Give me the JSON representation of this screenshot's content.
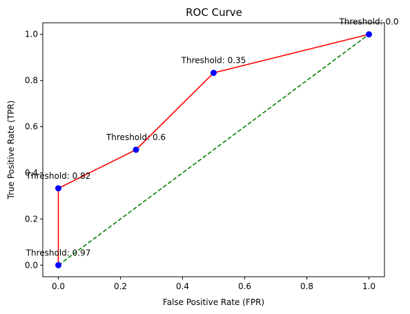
{
  "chart_data": {
    "type": "line",
    "title": "ROC Curve",
    "xlabel": "False Positive Rate (FPR)",
    "ylabel": "True Positive Rate (TPR)",
    "xlim": [
      -0.05,
      1.05
    ],
    "ylim": [
      -0.05,
      1.05
    ],
    "x_ticks": [
      0.0,
      0.2,
      0.4,
      0.6,
      0.8,
      1.0
    ],
    "y_ticks": [
      0.0,
      0.2,
      0.4,
      0.6,
      0.8,
      1.0
    ],
    "x_tick_labels": [
      "0.0",
      "0.2",
      "0.4",
      "0.6",
      "0.8",
      "1.0"
    ],
    "y_tick_labels": [
      "0.0",
      "0.2",
      "0.4",
      "0.6",
      "0.8",
      "1.0"
    ],
    "grid": false,
    "series": [
      {
        "style": "solid",
        "color": "#ff0000",
        "marker_color": "#0000ff",
        "x": [
          0.0,
          0.0,
          0.25,
          0.5,
          1.0
        ],
        "y": [
          0.0,
          0.333,
          0.5,
          0.833,
          1.0
        ]
      },
      {
        "style": "dashed",
        "color": "#008000",
        "x": [
          0.0,
          1.0
        ],
        "y": [
          0.0,
          1.0
        ]
      }
    ],
    "annotations": [
      {
        "text": "Threshold: 0.97",
        "x": 0.0,
        "y": 0.0
      },
      {
        "text": "Threshold: 0.82",
        "x": 0.0,
        "y": 0.333
      },
      {
        "text": "Threshold: 0.6",
        "x": 0.25,
        "y": 0.5
      },
      {
        "text": "Threshold: 0.35",
        "x": 0.5,
        "y": 0.833
      },
      {
        "text": "Threshold: 0.0",
        "x": 1.0,
        "y": 1.0
      }
    ]
  }
}
